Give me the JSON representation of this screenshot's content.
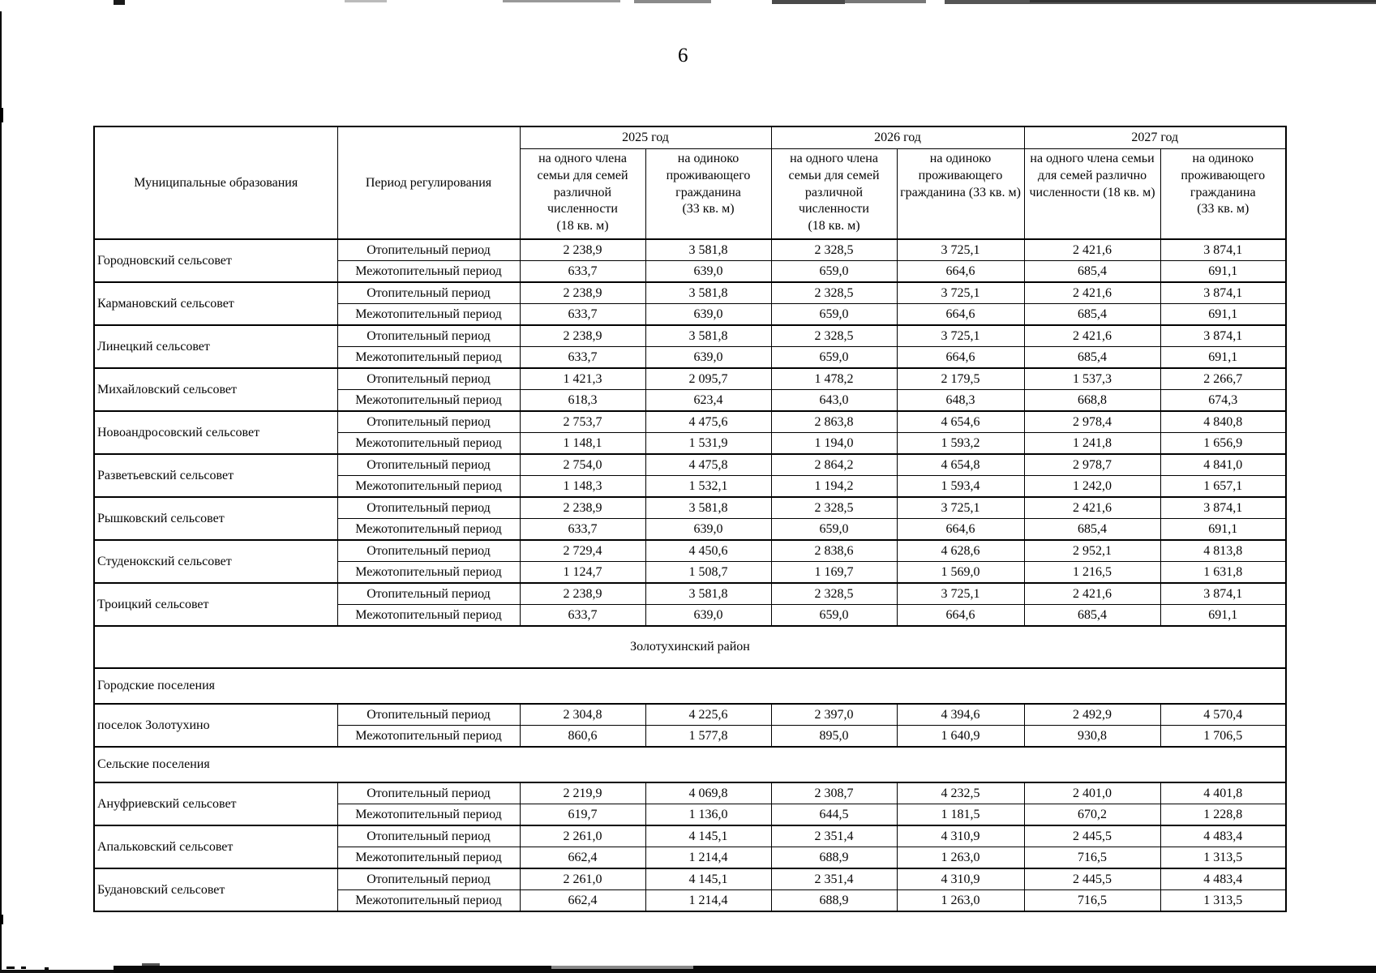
{
  "page_number": "6",
  "table": {
    "col_municipality": "Муниципальные образования",
    "col_period": "Период регулирования",
    "year_groups": [
      {
        "year": "2025 год",
        "col_a": "на одного члена семьи для семей различной численности (18 кв. м)",
        "col_b": "на одиноко проживающего гражданина (33 кв. м)"
      },
      {
        "year": "2026 год",
        "col_a": "на одного члена семьи для семей различной численности (18 кв. м)",
        "col_b": "на одиноко проживающего гражданина (33 кв. м)"
      },
      {
        "year": "2027 год",
        "col_a": "на одного члена семьи для семей различно численности (18 кв. м)",
        "col_b": "на одиноко проживающего гражданина (33 кв. м)"
      }
    ],
    "period_labels": {
      "heating": "Отопительный период",
      "non_heating": "Межотопительный период"
    },
    "rows": [
      {
        "type": "group",
        "name": "Городновский сельсовет",
        "heating": [
          "2 238,9",
          "3 581,8",
          "2 328,5",
          "3 725,1",
          "2 421,6",
          "3 874,1"
        ],
        "non_heating": [
          "633,7",
          "639,0",
          "659,0",
          "664,6",
          "685,4",
          "691,1"
        ]
      },
      {
        "type": "group",
        "name": "Кармановский сельсовет",
        "heating": [
          "2 238,9",
          "3 581,8",
          "2 328,5",
          "3 725,1",
          "2 421,6",
          "3 874,1"
        ],
        "non_heating": [
          "633,7",
          "639,0",
          "659,0",
          "664,6",
          "685,4",
          "691,1"
        ]
      },
      {
        "type": "group",
        "name": "Линецкий сельсовет",
        "heating": [
          "2 238,9",
          "3 581,8",
          "2 328,5",
          "3 725,1",
          "2 421,6",
          "3 874,1"
        ],
        "non_heating": [
          "633,7",
          "639,0",
          "659,0",
          "664,6",
          "685,4",
          "691,1"
        ]
      },
      {
        "type": "group",
        "name": "Михайловский сельсовет",
        "heating": [
          "1 421,3",
          "2 095,7",
          "1 478,2",
          "2 179,5",
          "1 537,3",
          "2 266,7"
        ],
        "non_heating": [
          "618,3",
          "623,4",
          "643,0",
          "648,3",
          "668,8",
          "674,3"
        ]
      },
      {
        "type": "group",
        "name": "Новоандросовский сельсовет",
        "heating": [
          "2 753,7",
          "4 475,6",
          "2 863,8",
          "4 654,6",
          "2 978,4",
          "4 840,8"
        ],
        "non_heating": [
          "1 148,1",
          "1 531,9",
          "1 194,0",
          "1 593,2",
          "1 241,8",
          "1 656,9"
        ]
      },
      {
        "type": "group",
        "name": "Разветьевский сельсовет",
        "heating": [
          "2 754,0",
          "4 475,8",
          "2 864,2",
          "4 654,8",
          "2 978,7",
          "4 841,0"
        ],
        "non_heating": [
          "1 148,3",
          "1 532,1",
          "1 194,2",
          "1 593,4",
          "1 242,0",
          "1 657,1"
        ]
      },
      {
        "type": "group",
        "name": "Рышковский сельсовет",
        "heating": [
          "2 238,9",
          "3 581,8",
          "2 328,5",
          "3 725,1",
          "2 421,6",
          "3 874,1"
        ],
        "non_heating": [
          "633,7",
          "639,0",
          "659,0",
          "664,6",
          "685,4",
          "691,1"
        ]
      },
      {
        "type": "group",
        "name": "Студенокский сельсовет",
        "heating": [
          "2 729,4",
          "4 450,6",
          "2 838,6",
          "4 628,6",
          "2 952,1",
          "4 813,8"
        ],
        "non_heating": [
          "1 124,7",
          "1 508,7",
          "1 169,7",
          "1 569,0",
          "1 216,5",
          "1 631,8"
        ]
      },
      {
        "type": "group",
        "name": "Троицкий сельсовет",
        "heating": [
          "2 238,9",
          "3 581,8",
          "2 328,5",
          "3 725,1",
          "2 421,6",
          "3 874,1"
        ],
        "non_heating": [
          "633,7",
          "639,0",
          "659,0",
          "664,6",
          "685,4",
          "691,1"
        ]
      },
      {
        "type": "section",
        "align": "center",
        "label": "Золотухинский район"
      },
      {
        "type": "section",
        "align": "left",
        "label": "Городские поселения"
      },
      {
        "type": "group",
        "name": "поселок Золотухино",
        "heating": [
          "2 304,8",
          "4 225,6",
          "2 397,0",
          "4 394,6",
          "2 492,9",
          "4 570,4"
        ],
        "non_heating": [
          "860,6",
          "1 577,8",
          "895,0",
          "1 640,9",
          "930,8",
          "1 706,5"
        ]
      },
      {
        "type": "section",
        "align": "left",
        "label": "Сельские поселения"
      },
      {
        "type": "group",
        "name": "Ануфриевский сельсовет",
        "heating": [
          "2 219,9",
          "4 069,8",
          "2 308,7",
          "4 232,5",
          "2 401,0",
          "4 401,8"
        ],
        "non_heating": [
          "619,7",
          "1 136,0",
          "644,5",
          "1 181,5",
          "670,2",
          "1 228,8"
        ]
      },
      {
        "type": "group",
        "name": "Апальковский сельсовет",
        "heating": [
          "2 261,0",
          "4 145,1",
          "2 351,4",
          "4 310,9",
          "2 445,5",
          "4 483,4"
        ],
        "non_heating": [
          "662,4",
          "1 214,4",
          "688,9",
          "1 263,0",
          "716,5",
          "1 313,5"
        ]
      },
      {
        "type": "group",
        "name": "Будановский сельсовет",
        "heating": [
          "2 261,0",
          "4 145,1",
          "2 351,4",
          "4 310,9",
          "2 445,5",
          "4 483,4"
        ],
        "non_heating": [
          "662,4",
          "1 214,4",
          "688,9",
          "1 263,0",
          "716,5",
          "1 313,5"
        ]
      }
    ]
  }
}
